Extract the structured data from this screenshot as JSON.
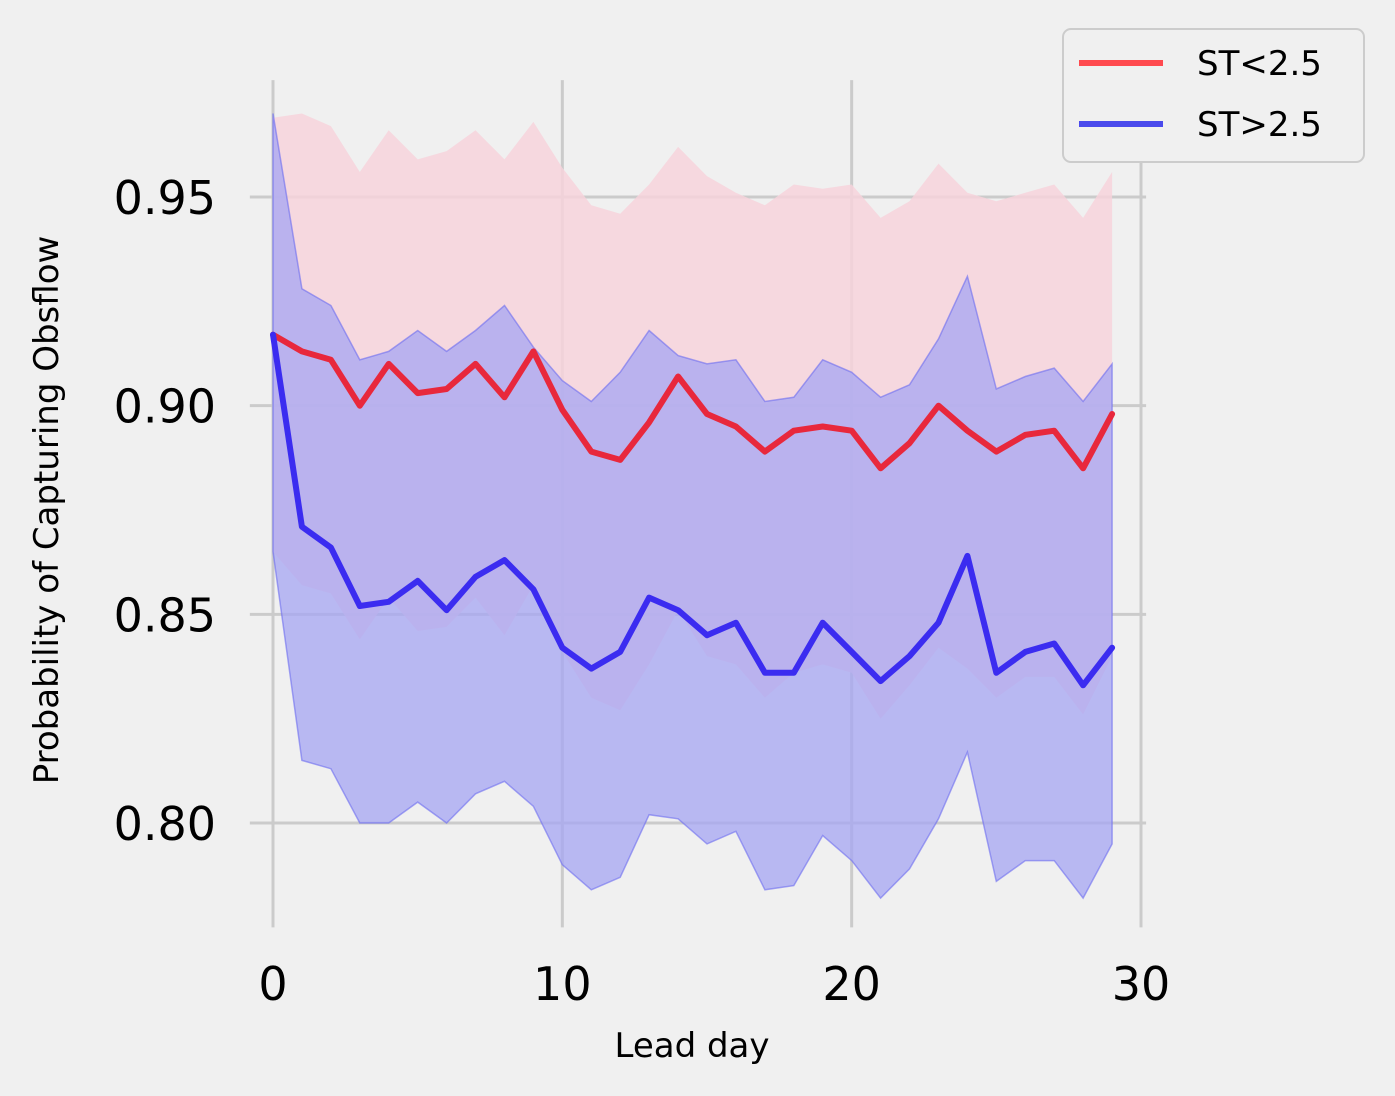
{
  "chart_data": {
    "type": "line",
    "xlabel": "Lead day",
    "ylabel": "Probability of Capturing Obsflow",
    "xlim": [
      -0.8,
      29.9
    ],
    "ylim": [
      0.775,
      0.978
    ],
    "xticks": [
      0,
      10,
      20,
      30
    ],
    "xtick_labels": [
      "0",
      "10",
      "20",
      "30"
    ],
    "yticks": [
      0.8,
      0.85,
      0.9,
      0.95
    ],
    "ytick_labels": [
      "0.80",
      "0.85",
      "0.90",
      "0.95"
    ],
    "grid": true,
    "legend_position": "top-right",
    "x": [
      0,
      1,
      2,
      3,
      4,
      5,
      6,
      7,
      8,
      9,
      10,
      11,
      12,
      13,
      14,
      15,
      16,
      17,
      18,
      19,
      20,
      21,
      22,
      23,
      24,
      25,
      26,
      27,
      28,
      29
    ],
    "series": [
      {
        "name": "ST<2.5",
        "color": "#e8283c",
        "legend_color": "#ff4a4f",
        "band_color": "#f7d4dc",
        "values": [
          0.917,
          0.913,
          0.911,
          0.9,
          0.91,
          0.903,
          0.904,
          0.91,
          0.902,
          0.913,
          0.899,
          0.889,
          0.887,
          0.896,
          0.907,
          0.898,
          0.895,
          0.889,
          0.894,
          0.895,
          0.894,
          0.885,
          0.891,
          0.9,
          0.894,
          0.889,
          0.893,
          0.894,
          0.885,
          0.898
        ],
        "upper": [
          0.969,
          0.97,
          0.967,
          0.956,
          0.966,
          0.959,
          0.961,
          0.966,
          0.959,
          0.968,
          0.957,
          0.948,
          0.946,
          0.953,
          0.962,
          0.955,
          0.951,
          0.948,
          0.953,
          0.952,
          0.953,
          0.945,
          0.949,
          0.958,
          0.951,
          0.949,
          0.951,
          0.953,
          0.945,
          0.956
        ],
        "lower": [
          0.865,
          0.857,
          0.855,
          0.844,
          0.854,
          0.846,
          0.847,
          0.854,
          0.845,
          0.857,
          0.841,
          0.83,
          0.827,
          0.838,
          0.851,
          0.84,
          0.838,
          0.83,
          0.836,
          0.838,
          0.836,
          0.825,
          0.833,
          0.842,
          0.837,
          0.83,
          0.835,
          0.835,
          0.826,
          0.84
        ]
      },
      {
        "name": "ST>2.5",
        "color": "#3b2cf0",
        "legend_color": "#4a4aec",
        "band_color": "#a6a6f3",
        "values": [
          0.917,
          0.871,
          0.866,
          0.852,
          0.853,
          0.858,
          0.851,
          0.859,
          0.863,
          0.856,
          0.842,
          0.837,
          0.841,
          0.854,
          0.851,
          0.845,
          0.848,
          0.836,
          0.836,
          0.848,
          0.841,
          0.834,
          0.84,
          0.848,
          0.864,
          0.836,
          0.841,
          0.843,
          0.833,
          0.842
        ],
        "upper": [
          0.97,
          0.928,
          0.924,
          0.911,
          0.913,
          0.918,
          0.913,
          0.918,
          0.924,
          0.914,
          0.906,
          0.901,
          0.908,
          0.918,
          0.912,
          0.91,
          0.911,
          0.901,
          0.902,
          0.911,
          0.908,
          0.902,
          0.905,
          0.916,
          0.931,
          0.904,
          0.907,
          0.909,
          0.901,
          0.91
        ],
        "lower": [
          0.865,
          0.815,
          0.813,
          0.8,
          0.8,
          0.805,
          0.8,
          0.807,
          0.81,
          0.804,
          0.79,
          0.784,
          0.787,
          0.802,
          0.801,
          0.795,
          0.798,
          0.784,
          0.785,
          0.797,
          0.791,
          0.782,
          0.789,
          0.801,
          0.817,
          0.786,
          0.791,
          0.791,
          0.782,
          0.795
        ]
      }
    ]
  }
}
